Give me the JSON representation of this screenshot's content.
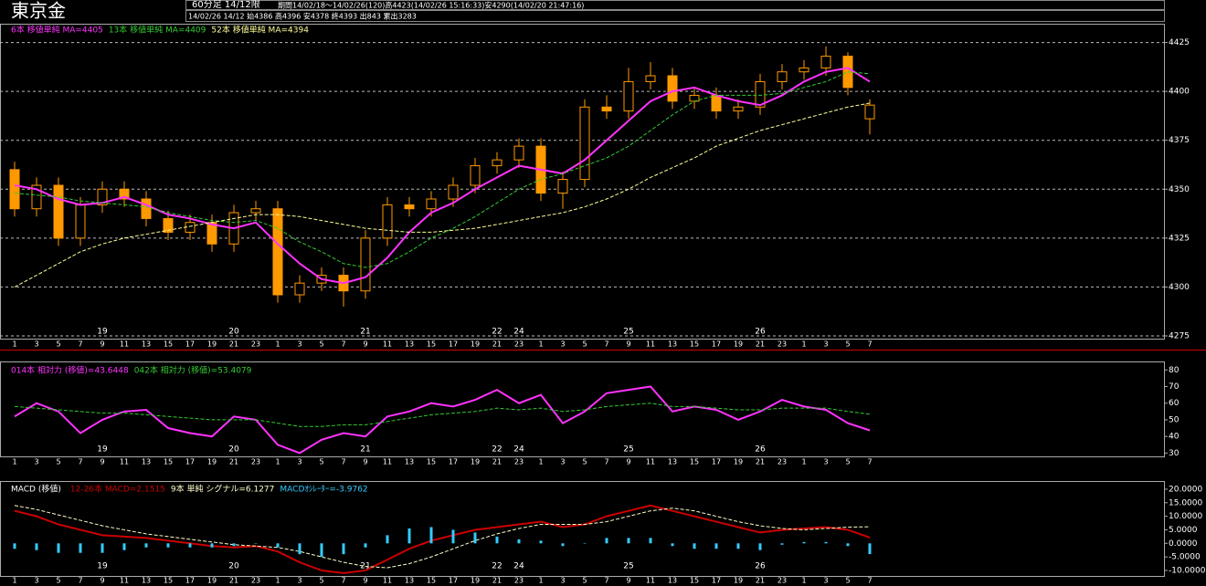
{
  "header": {
    "title": "東京金",
    "timeframe": "60分足 14/12限",
    "period": "期間14/02/18～14/02/26(120)高4423(14/02/26 15:16:33)安4290(14/02/20 21:47:16)",
    "last_bar": "14/02/26 14/12 始4386 高4396 安4378 終4393 出843 累出3283"
  },
  "chart_data": [
    {
      "type": "candlestick",
      "color": "#ff9900",
      "categories": [
        null,
        null,
        null,
        null,
        "19",
        null,
        null,
        null,
        null,
        null,
        "20",
        null,
        null,
        null,
        null,
        null,
        "21",
        null,
        null,
        null,
        null,
        null,
        "22",
        "24",
        null,
        null,
        null,
        null,
        "25",
        null,
        null,
        null,
        null,
        null,
        "26",
        null,
        null,
        null,
        null,
        null
      ],
      "hour_labels": [
        "1",
        "3",
        "5",
        "7",
        "9",
        "11",
        "13",
        "15",
        "17",
        "19",
        "21",
        "23",
        "1",
        "3",
        "5",
        "7",
        "9",
        "11",
        "13",
        "15",
        "17",
        "19",
        "21",
        "23",
        "1",
        "3",
        "5",
        "7",
        "9",
        "11",
        "13",
        "15",
        "17",
        "19",
        "21",
        "23",
        "1",
        "3",
        "5",
        "7"
      ],
      "open": [
        4360,
        4340,
        4352,
        4325,
        4342,
        4350,
        4345,
        4335,
        4328,
        4333,
        4322,
        4338,
        4340,
        4296,
        4302,
        4306,
        4298,
        4325,
        4342,
        4340,
        4345,
        4352,
        4362,
        4365,
        4372,
        4348,
        4355,
        4392,
        4390,
        4405,
        4408,
        4395,
        4398,
        4390,
        4392,
        4405,
        4410,
        4412,
        4418,
        4386
      ],
      "high": [
        4364,
        4356,
        4356,
        4346,
        4354,
        4354,
        4349,
        4339,
        4337,
        4337,
        4342,
        4344,
        4344,
        4306,
        4310,
        4310,
        4329,
        4346,
        4346,
        4349,
        4356,
        4366,
        4369,
        4376,
        4376,
        4359,
        4396,
        4398,
        4412,
        4415,
        4412,
        4402,
        4402,
        4396,
        4409,
        4414,
        4416,
        4423,
        4420,
        4396
      ],
      "low": [
        4336,
        4336,
        4321,
        4321,
        4338,
        4341,
        4331,
        4324,
        4324,
        4318,
        4318,
        4334,
        4292,
        4292,
        4298,
        4290,
        4294,
        4321,
        4336,
        4336,
        4341,
        4348,
        4358,
        4361,
        4344,
        4340,
        4351,
        4386,
        4386,
        4401,
        4391,
        4391,
        4386,
        4386,
        4388,
        4401,
        4406,
        4408,
        4398,
        4378
      ],
      "close": [
        4340,
        4352,
        4325,
        4342,
        4350,
        4345,
        4335,
        4328,
        4333,
        4322,
        4338,
        4340,
        4296,
        4302,
        4306,
        4298,
        4325,
        4342,
        4340,
        4345,
        4352,
        4362,
        4365,
        4372,
        4348,
        4355,
        4392,
        4390,
        4405,
        4408,
        4395,
        4398,
        4390,
        4392,
        4405,
        4410,
        4412,
        4418,
        4402,
        4393
      ],
      "series": [
        {
          "name": "6本 移値単純 MA=4405",
          "color": "#ff33ff",
          "values": [
            4352,
            4350,
            4345,
            4342,
            4343,
            4346,
            4342,
            4337,
            4335,
            4332,
            4330,
            4333,
            4322,
            4312,
            4304,
            4302,
            4305,
            4315,
            4328,
            4338,
            4343,
            4350,
            4356,
            4362,
            4360,
            4358,
            4365,
            4375,
            4385,
            4395,
            4400,
            4402,
            4398,
            4395,
            4393,
            4398,
            4405,
            4410,
            4412,
            4405
          ]
        },
        {
          "name": "13本 移値単純 MA=4409",
          "color": "#33cc33",
          "values": [
            4348,
            4347,
            4346,
            4344,
            4343,
            4342,
            4341,
            4338,
            4336,
            4334,
            4333,
            4334,
            4330,
            4323,
            4318,
            4312,
            4310,
            4312,
            4318,
            4325,
            4330,
            4336,
            4343,
            4350,
            4355,
            4358,
            4362,
            4366,
            4372,
            4380,
            4388,
            4395,
            4398,
            4398,
            4398,
            4399,
            4402,
            4405,
            4410,
            4409
          ]
        },
        {
          "name": "52本 移値単純 MA=4394",
          "color": "#ffff99",
          "values": [
            4300,
            4306,
            4312,
            4318,
            4322,
            4325,
            4327,
            4329,
            4331,
            4333,
            4335,
            4337,
            4337,
            4336,
            4334,
            4332,
            4330,
            4329,
            4328,
            4328,
            4329,
            4330,
            4332,
            4334,
            4336,
            4338,
            4341,
            4345,
            4350,
            4356,
            4361,
            4366,
            4372,
            4376,
            4380,
            4383,
            4386,
            4389,
            4392,
            4394
          ]
        }
      ],
      "ylim": [
        4275,
        4429
      ],
      "yticks": [
        4275,
        4300,
        4325,
        4350,
        4375,
        4400,
        4425
      ],
      "grid": true
    },
    {
      "type": "line",
      "categories": [
        null,
        null,
        null,
        null,
        "19",
        null,
        null,
        null,
        null,
        null,
        "20",
        null,
        null,
        null,
        null,
        null,
        "21",
        null,
        null,
        null,
        null,
        null,
        "22",
        "24",
        null,
        null,
        null,
        null,
        "25",
        null,
        null,
        null,
        null,
        null,
        "26",
        null,
        null,
        null,
        null,
        null
      ],
      "hour_labels": [
        "1",
        "3",
        "5",
        "7",
        "9",
        "11",
        "13",
        "15",
        "17",
        "19",
        "21",
        "23",
        "1",
        "3",
        "5",
        "7",
        "9",
        "11",
        "13",
        "15",
        "17",
        "19",
        "21",
        "23",
        "1",
        "3",
        "5",
        "7",
        "9",
        "11",
        "13",
        "15",
        "17",
        "19",
        "21",
        "23",
        "1",
        "3",
        "5",
        "7"
      ],
      "series": [
        {
          "name": "014本 相対力 (移値)=43.6448",
          "color": "#ff33ff",
          "values": [
            52,
            60,
            55,
            42,
            50,
            55,
            56,
            45,
            42,
            40,
            52,
            50,
            35,
            30,
            38,
            42,
            40,
            52,
            55,
            60,
            58,
            62,
            68,
            60,
            65,
            48,
            55,
            66,
            68,
            70,
            55,
            58,
            56,
            50,
            55,
            62,
            58,
            56,
            48,
            43.6448
          ]
        },
        {
          "name": "042本 相対力 (移値)=53.4079",
          "color": "#33cc33",
          "values": [
            58,
            57,
            56,
            55,
            54,
            54,
            53,
            52,
            51,
            50,
            50,
            50,
            48,
            46,
            46,
            47,
            47,
            49,
            51,
            53,
            54,
            55,
            57,
            56,
            57,
            55,
            56,
            58,
            59,
            60,
            58,
            58,
            57,
            56,
            56,
            57,
            57,
            57,
            55,
            53.4079
          ]
        }
      ],
      "ylim": [
        28,
        84
      ],
      "yticks": [
        30,
        40,
        50,
        60,
        70,
        80
      ],
      "grid": false
    },
    {
      "type": "line",
      "title": "MACD (移値)",
      "categories": [
        null,
        null,
        null,
        null,
        "19",
        null,
        null,
        null,
        null,
        null,
        "20",
        null,
        null,
        null,
        null,
        null,
        "21",
        null,
        null,
        null,
        null,
        null,
        "22",
        "24",
        null,
        null,
        null,
        null,
        "25",
        null,
        null,
        null,
        null,
        null,
        "26",
        null,
        null,
        null,
        null,
        null
      ],
      "hour_labels": [
        "1",
        "3",
        "5",
        "7",
        "9",
        "11",
        "13",
        "15",
        "17",
        "19",
        "21",
        "23",
        "1",
        "3",
        "5",
        "7",
        "9",
        "11",
        "13",
        "15",
        "17",
        "19",
        "21",
        "23",
        "1",
        "3",
        "5",
        "7",
        "9",
        "11",
        "13",
        "15",
        "17",
        "19",
        "21",
        "23",
        "1",
        "3",
        "5",
        "7"
      ],
      "series": [
        {
          "name": "12-26本 MACD=2.1515",
          "color": "#cc0000",
          "values": [
            12,
            10,
            7,
            5,
            3,
            2.5,
            2,
            1,
            0,
            -1,
            -1.5,
            -1,
            -3,
            -7,
            -10,
            -11,
            -10,
            -6,
            -2,
            1,
            3,
            5,
            6,
            7,
            8,
            6,
            7,
            10,
            12,
            14,
            12,
            10,
            8,
            6,
            4,
            5,
            5.5,
            6,
            5,
            2.1515
          ]
        },
        {
          "name": "9本 単純 シグナル=6.1277",
          "color": "#ffffcc",
          "values": [
            14,
            12.5,
            10.5,
            8.5,
            6.5,
            5,
            3.5,
            2.5,
            1.5,
            0.5,
            -0.5,
            -1,
            -1.5,
            -3,
            -5,
            -7,
            -8.5,
            -9,
            -7.5,
            -5,
            -2,
            1,
            3.5,
            5.5,
            7,
            7,
            7,
            8,
            10,
            12,
            13,
            12,
            10,
            8,
            6.5,
            5.5,
            5,
            5.5,
            6,
            6.1277
          ]
        },
        {
          "name": "MACDｵｼﾚｰﾀｰ=-3.9762",
          "color": "#33ccff",
          "mark": "bar",
          "values": [
            -2,
            -2.5,
            -3.5,
            -3.5,
            -3.5,
            -2.5,
            -1.5,
            -1.5,
            -1.5,
            -1.5,
            -1,
            0,
            -1.5,
            -4,
            -5,
            -4,
            -1.5,
            3,
            5.5,
            6,
            5,
            4,
            2.5,
            1.5,
            1,
            -1,
            0,
            2,
            2,
            2,
            -1,
            -2,
            -2,
            -2,
            -2.5,
            -0.5,
            0.5,
            0.5,
            -1,
            -3.9762
          ]
        }
      ],
      "ylim": [
        -11.7,
        22
      ],
      "yticks": [
        {
          "value": -10,
          "label": "-10.0000"
        },
        {
          "value": -5,
          "label": "-5.0000"
        },
        {
          "value": 0,
          "label": "0.0000"
        },
        {
          "value": 5,
          "label": "5.0000"
        },
        {
          "value": 10,
          "label": "10.0000"
        },
        {
          "value": 15,
          "label": "15.0000"
        },
        {
          "value": 20,
          "label": "20.0000"
        }
      ],
      "grid": false
    }
  ]
}
